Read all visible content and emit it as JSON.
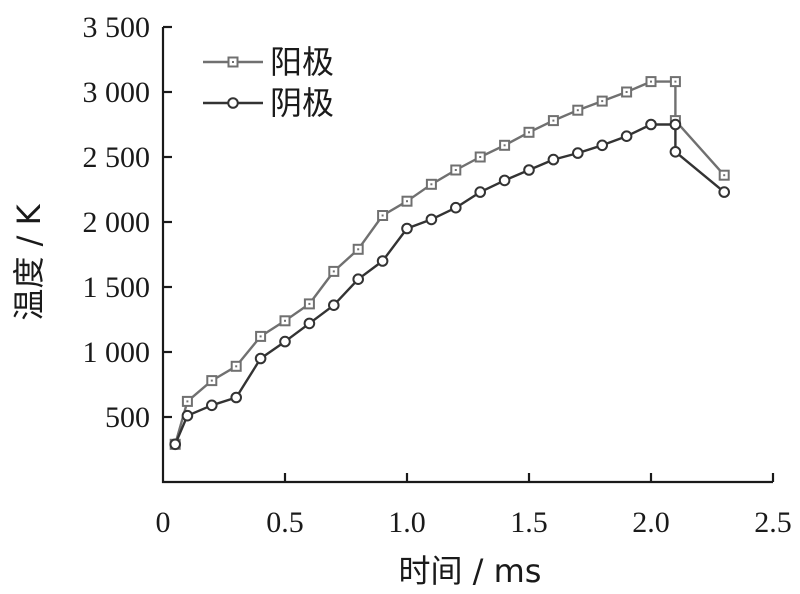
{
  "chart_data": {
    "type": "line",
    "xlabel": "时间 / ms",
    "ylabel": "温度 / K",
    "xlim": [
      0,
      2.5
    ],
    "ylim": [
      0,
      3500
    ],
    "x_ticks": [
      "0",
      "0.5",
      "1.0",
      "1.5",
      "2.0",
      "2.5"
    ],
    "x_tick_values": [
      0,
      0.5,
      1.0,
      1.5,
      2.0,
      2.5
    ],
    "y_ticks": [
      "500",
      "1 000",
      "1 500",
      "2 000",
      "2 500",
      "3 000",
      "3 500"
    ],
    "y_tick_values": [
      500,
      1000,
      1500,
      2000,
      2500,
      3000,
      3500
    ],
    "grid": false,
    "legend_position": "top-left",
    "series": [
      {
        "name": "阳极",
        "marker": "square",
        "color": "#707070",
        "x": [
          0.05,
          0.1,
          0.2,
          0.3,
          0.4,
          0.5,
          0.6,
          0.7,
          0.8,
          0.9,
          1.0,
          1.1,
          1.2,
          1.3,
          1.4,
          1.5,
          1.6,
          1.7,
          1.8,
          1.9,
          2.0,
          2.1,
          2.1,
          2.3
        ],
        "y": [
          290,
          620,
          780,
          890,
          1120,
          1240,
          1370,
          1620,
          1790,
          2050,
          2160,
          2290,
          2400,
          2500,
          2590,
          2690,
          2780,
          2860,
          2930,
          3000,
          3080,
          3080,
          2780,
          2360
        ]
      },
      {
        "name": "阴极",
        "marker": "circle",
        "color": "#333333",
        "x": [
          0.05,
          0.1,
          0.2,
          0.3,
          0.4,
          0.5,
          0.6,
          0.7,
          0.8,
          0.9,
          1.0,
          1.1,
          1.2,
          1.3,
          1.4,
          1.5,
          1.6,
          1.7,
          1.8,
          1.9,
          2.0,
          2.1,
          2.1,
          2.3
        ],
        "y": [
          290,
          510,
          590,
          650,
          950,
          1080,
          1220,
          1360,
          1560,
          1700,
          1950,
          2020,
          2110,
          2230,
          2320,
          2400,
          2480,
          2530,
          2590,
          2660,
          2750,
          2750,
          2540,
          2230
        ]
      }
    ]
  }
}
